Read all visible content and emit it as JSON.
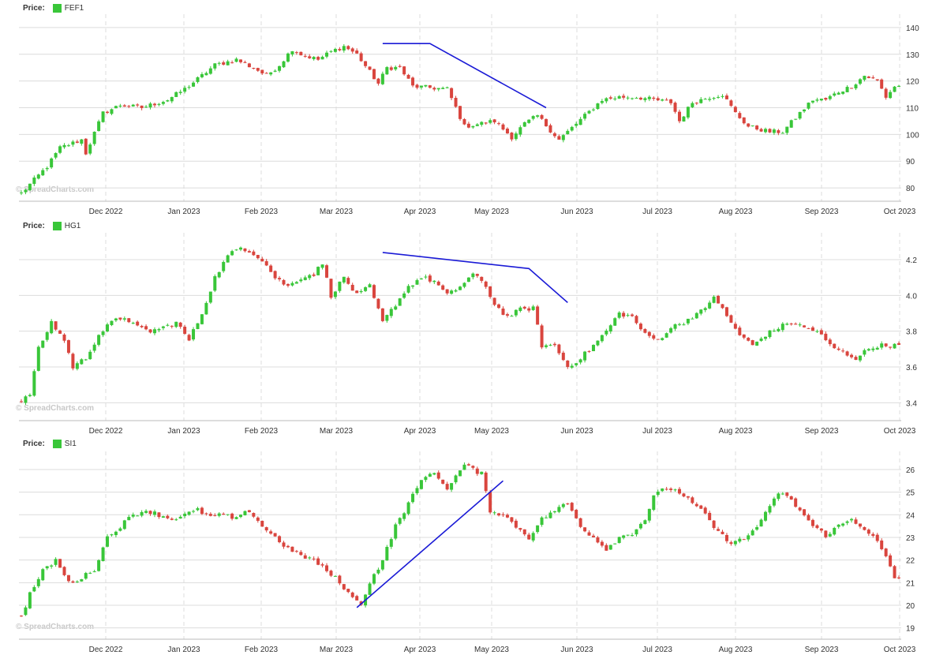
{
  "watermark": "© SpreadCharts.com",
  "colors": {
    "up": "#39c639",
    "down": "#d9453e",
    "trend": "#1a1ad6",
    "grid": "#dcdcdc",
    "axis": "#333333"
  },
  "x_ticks": [
    "Dec 2022",
    "Jan 2023",
    "Feb 2023",
    "Mar 2023",
    "Apr 2023",
    "May 2023",
    "Jun 2023",
    "Jul 2023",
    "Aug 2023",
    "Sep 2023",
    "Oct 2023"
  ],
  "chart_data": [
    {
      "type": "candlestick",
      "price_label": "Price:",
      "series_name": "FEF1",
      "yticks": [
        80,
        90,
        100,
        110,
        120,
        130,
        140
      ],
      "ylim": [
        75,
        145
      ],
      "path": [
        [
          0,
          78
        ],
        [
          6,
          88
        ],
        [
          9,
          95
        ],
        [
          14,
          98
        ],
        [
          15,
          93
        ],
        [
          19,
          108
        ],
        [
          23,
          111
        ],
        [
          28,
          110
        ],
        [
          34,
          113
        ],
        [
          38,
          117
        ],
        [
          42,
          122
        ],
        [
          45,
          126
        ],
        [
          50,
          128
        ],
        [
          55,
          124
        ],
        [
          57,
          122
        ],
        [
          60,
          126
        ],
        [
          63,
          132
        ],
        [
          65,
          130
        ],
        [
          69,
          128
        ],
        [
          72,
          131
        ],
        [
          75,
          133
        ],
        [
          78,
          130
        ],
        [
          83,
          119
        ],
        [
          85,
          125
        ],
        [
          88,
          125
        ],
        [
          91,
          118
        ],
        [
          99,
          117
        ],
        [
          101,
          110
        ],
        [
          103,
          103
        ],
        [
          110,
          105
        ],
        [
          114,
          99
        ],
        [
          117,
          104
        ],
        [
          120,
          107
        ],
        [
          125,
          98
        ],
        [
          127,
          101
        ],
        [
          131,
          107
        ],
        [
          135,
          113
        ],
        [
          139,
          114
        ],
        [
          143,
          114
        ],
        [
          147,
          113
        ],
        [
          151,
          112
        ],
        [
          153,
          105
        ],
        [
          156,
          112
        ],
        [
          160,
          114
        ],
        [
          163,
          115
        ],
        [
          166,
          108
        ],
        [
          169,
          103
        ],
        [
          174,
          101
        ],
        [
          177,
          101
        ],
        [
          181,
          108
        ],
        [
          184,
          113
        ],
        [
          187,
          113
        ],
        [
          190,
          116
        ],
        [
          193,
          118
        ],
        [
          196,
          122
        ],
        [
          199,
          120
        ],
        [
          201,
          114
        ],
        [
          203,
          118
        ]
      ],
      "trendlines": [
        [
          [
            84,
            134
          ],
          [
            95,
            134
          ],
          [
            122,
            110
          ]
        ]
      ]
    },
    {
      "type": "candlestick",
      "price_label": "Price:",
      "series_name": "HG1",
      "yticks": [
        3.4,
        3.6,
        3.8,
        4.0,
        4.2
      ],
      "ylim": [
        3.3,
        4.35
      ],
      "path": [
        [
          0,
          3.4
        ],
        [
          2,
          3.45
        ],
        [
          4,
          3.7
        ],
        [
          7,
          3.85
        ],
        [
          10,
          3.75
        ],
        [
          12,
          3.6
        ],
        [
          15,
          3.65
        ],
        [
          18,
          3.78
        ],
        [
          21,
          3.85
        ],
        [
          24,
          3.88
        ],
        [
          27,
          3.82
        ],
        [
          30,
          3.8
        ],
        [
          33,
          3.82
        ],
        [
          36,
          3.85
        ],
        [
          39,
          3.75
        ],
        [
          42,
          3.9
        ],
        [
          45,
          4.1
        ],
        [
          48,
          4.22
        ],
        [
          51,
          4.27
        ],
        [
          53,
          4.25
        ],
        [
          56,
          4.2
        ],
        [
          59,
          4.1
        ],
        [
          62,
          4.05
        ],
        [
          65,
          4.1
        ],
        [
          68,
          4.12
        ],
        [
          70,
          4.18
        ],
        [
          72,
          4.0
        ],
        [
          75,
          4.1
        ],
        [
          78,
          4.0
        ],
        [
          81,
          4.05
        ],
        [
          84,
          3.85
        ],
        [
          87,
          3.95
        ],
        [
          90,
          4.05
        ],
        [
          93,
          4.1
        ],
        [
          96,
          4.08
        ],
        [
          99,
          4.0
        ],
        [
          102,
          4.05
        ],
        [
          105,
          4.12
        ],
        [
          108,
          4.05
        ],
        [
          110,
          3.95
        ],
        [
          113,
          3.88
        ],
        [
          116,
          3.92
        ],
        [
          119,
          3.93
        ],
        [
          121,
          3.72
        ],
        [
          124,
          3.72
        ],
        [
          127,
          3.6
        ],
        [
          130,
          3.65
        ],
        [
          133,
          3.72
        ],
        [
          136,
          3.8
        ],
        [
          139,
          3.9
        ],
        [
          142,
          3.88
        ],
        [
          145,
          3.78
        ],
        [
          148,
          3.75
        ],
        [
          151,
          3.82
        ],
        [
          154,
          3.85
        ],
        [
          157,
          3.9
        ],
        [
          159,
          3.92
        ],
        [
          161,
          4.0
        ],
        [
          164,
          3.88
        ],
        [
          167,
          3.78
        ],
        [
          170,
          3.72
        ],
        [
          173,
          3.78
        ],
        [
          176,
          3.82
        ],
        [
          179,
          3.85
        ],
        [
          182,
          3.82
        ],
        [
          185,
          3.8
        ],
        [
          188,
          3.72
        ],
        [
          191,
          3.68
        ],
        [
          194,
          3.65
        ],
        [
          197,
          3.7
        ],
        [
          199,
          3.72
        ]
      ],
      "trendlines": [
        [
          [
            84,
            4.24
          ],
          [
            118,
            4.15
          ],
          [
            127,
            3.96
          ]
        ]
      ]
    },
    {
      "type": "candlestick",
      "price_label": "Price:",
      "series_name": "SI1",
      "yticks": [
        19,
        20,
        21,
        22,
        23,
        24,
        25,
        26
      ],
      "ylim": [
        18.5,
        26.8
      ],
      "path": [
        [
          0,
          19.5
        ],
        [
          2,
          20.5
        ],
        [
          5,
          21.5
        ],
        [
          8,
          22
        ],
        [
          11,
          21
        ],
        [
          14,
          21.2
        ],
        [
          17,
          21.6
        ],
        [
          20,
          23
        ],
        [
          23,
          23.5
        ],
        [
          26,
          24
        ],
        [
          29,
          24.2
        ],
        [
          32,
          24
        ],
        [
          35,
          23.8
        ],
        [
          38,
          24
        ],
        [
          41,
          24.2
        ],
        [
          44,
          23.9
        ],
        [
          47,
          24
        ],
        [
          50,
          23.8
        ],
        [
          53,
          24.2
        ],
        [
          56,
          23.5
        ],
        [
          59,
          23
        ],
        [
          62,
          22.5
        ],
        [
          65,
          22.2
        ],
        [
          68,
          22
        ],
        [
          71,
          21.5
        ],
        [
          73,
          21.2
        ],
        [
          75,
          20.8
        ],
        [
          77,
          20.3
        ],
        [
          79,
          20.1
        ],
        [
          81,
          21
        ],
        [
          84,
          22
        ],
        [
          87,
          23.5
        ],
        [
          90,
          24.5
        ],
        [
          93,
          25.5
        ],
        [
          95,
          25.9
        ],
        [
          97,
          25.6
        ],
        [
          99,
          25.2
        ],
        [
          101,
          25.7
        ],
        [
          103,
          26.2
        ],
        [
          105,
          26
        ],
        [
          107,
          25.8
        ],
        [
          109,
          24.2
        ],
        [
          112,
          24
        ],
        [
          115,
          23.5
        ],
        [
          118,
          23
        ],
        [
          121,
          23.8
        ],
        [
          124,
          24.2
        ],
        [
          127,
          24.5
        ],
        [
          130,
          23.5
        ],
        [
          133,
          23
        ],
        [
          136,
          22.5
        ],
        [
          139,
          23
        ],
        [
          142,
          23.2
        ],
        [
          145,
          23.8
        ],
        [
          147,
          24.8
        ],
        [
          150,
          25.2
        ],
        [
          153,
          25
        ],
        [
          156,
          24.5
        ],
        [
          159,
          24
        ],
        [
          162,
          23.2
        ],
        [
          165,
          22.8
        ],
        [
          168,
          22.9
        ],
        [
          171,
          23.5
        ],
        [
          174,
          24.3
        ],
        [
          176,
          25
        ],
        [
          178,
          24.8
        ],
        [
          181,
          24.2
        ],
        [
          184,
          23.5
        ],
        [
          187,
          23.1
        ],
        [
          190,
          23.5
        ],
        [
          193,
          23.8
        ],
        [
          196,
          23.4
        ],
        [
          199,
          22.8
        ],
        [
          201,
          22.1
        ],
        [
          203,
          21.2
        ]
      ],
      "trendlines": [
        [
          [
            78,
            19.9
          ],
          [
            112,
            25.5
          ]
        ]
      ]
    }
  ]
}
